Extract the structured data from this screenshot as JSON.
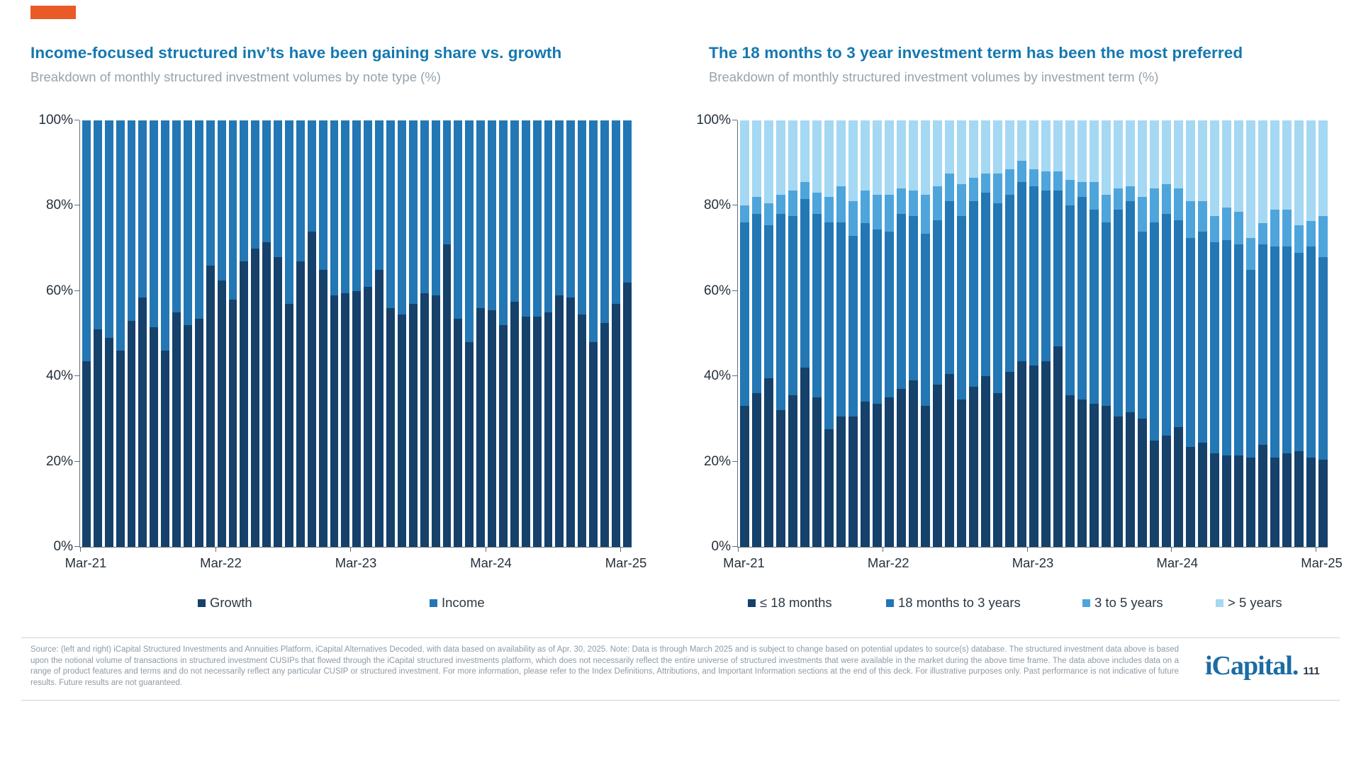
{
  "colors": {
    "accent_orange": "#E95A28",
    "title_blue": "#1478B0",
    "subtitle_gray": "#95A3AE",
    "axis_gray": "#5F6E79",
    "tick_label": "#25303B",
    "footer_gray": "#8C9BA7",
    "logo_blue": "#1B6CA5",
    "growth_navy": "#15416B",
    "income_blue": "#2277B4",
    "three_to_five_blue": "#4EA5DB",
    "over_five_blue": "#A5D8F3"
  },
  "charts": [
    {
      "title": "Income-focused structured inv’ts have been gaining share vs. growth",
      "subtitle": "Breakdown of monthly structured investment volumes by note type (%)"
    },
    {
      "title": "The 18 months to 3 year investment term has been the most preferred",
      "subtitle": "Breakdown of monthly structured investment volumes by investment term (%)"
    }
  ],
  "chart_data": [
    {
      "type": "bar",
      "stacked": true,
      "title": "Income-focused structured inv’ts have been gaining share vs. growth",
      "subtitle": "Breakdown of monthly structured investment volumes by note type (%)",
      "ylim": [
        0,
        100
      ],
      "grid": false,
      "legend_position": "bottom",
      "categories": [
        "Mar-21",
        "Apr-21",
        "May-21",
        "Jun-21",
        "Jul-21",
        "Aug-21",
        "Sep-21",
        "Oct-21",
        "Nov-21",
        "Dec-21",
        "Jan-22",
        "Feb-22",
        "Mar-22",
        "Apr-22",
        "May-22",
        "Jun-22",
        "Jul-22",
        "Aug-22",
        "Sep-22",
        "Oct-22",
        "Nov-22",
        "Dec-22",
        "Jan-23",
        "Feb-23",
        "Mar-23",
        "Apr-23",
        "May-23",
        "Jun-23",
        "Jul-23",
        "Aug-23",
        "Sep-23",
        "Oct-23",
        "Nov-23",
        "Dec-23",
        "Jan-24",
        "Feb-24",
        "Mar-24",
        "Apr-24",
        "May-24",
        "Jun-24",
        "Jul-24",
        "Aug-24",
        "Sep-24",
        "Oct-24",
        "Nov-24",
        "Dec-24",
        "Jan-25",
        "Feb-25",
        "Mar-25"
      ],
      "x_ticks": [
        {
          "label": "Mar-21",
          "index": 0
        },
        {
          "label": "Mar-22",
          "index": 12
        },
        {
          "label": "Mar-23",
          "index": 24
        },
        {
          "label": "Mar-24",
          "index": 36
        },
        {
          "label": "Mar-25",
          "index": 48
        }
      ],
      "y_ticks": [
        {
          "label": "0%",
          "value": 0
        },
        {
          "label": "20%",
          "value": 20
        },
        {
          "label": "40%",
          "value": 40
        },
        {
          "label": "60%",
          "value": 60
        },
        {
          "label": "80%",
          "value": 80
        },
        {
          "label": "100%",
          "value": 100
        }
      ],
      "series": [
        {
          "name": "Growth",
          "color": "#15416B",
          "values": [
            43.5,
            51,
            49,
            46,
            53,
            58.5,
            51.5,
            46,
            55,
            52,
            53.5,
            66,
            62.5,
            58,
            67,
            70,
            71.5,
            68,
            57,
            67,
            74,
            65,
            59,
            59.5,
            60,
            61,
            65,
            56,
            54.5,
            57,
            59.5,
            59,
            71,
            53.5,
            48,
            56,
            55.5,
            52,
            57.5,
            54,
            54,
            55,
            59,
            58.5,
            54.5,
            48,
            52.5,
            57,
            62
          ]
        },
        {
          "name": "Income",
          "color": "#2277B4",
          "values": [
            56.5,
            49,
            51,
            54,
            47,
            41.5,
            48.5,
            54,
            45,
            48,
            46.5,
            34,
            37.5,
            42,
            33,
            30,
            28.5,
            32,
            43,
            33,
            26,
            35,
            41,
            40.5,
            40,
            39,
            35,
            44,
            45.5,
            43,
            40.5,
            41,
            29,
            46.5,
            52,
            44,
            44.5,
            48,
            42.5,
            46,
            46,
            45,
            41,
            41.5,
            45.5,
            52,
            47.5,
            43,
            38
          ]
        }
      ]
    },
    {
      "type": "bar",
      "stacked": true,
      "title": "The 18 months to 3 year investment term has been the most preferred",
      "subtitle": "Breakdown of monthly structured investment volumes by investment term (%)",
      "ylim": [
        0,
        100
      ],
      "grid": false,
      "legend_position": "bottom",
      "categories": [
        "Mar-21",
        "Apr-21",
        "May-21",
        "Jun-21",
        "Jul-21",
        "Aug-21",
        "Sep-21",
        "Oct-21",
        "Nov-21",
        "Dec-21",
        "Jan-22",
        "Feb-22",
        "Mar-22",
        "Apr-22",
        "May-22",
        "Jun-22",
        "Jul-22",
        "Aug-22",
        "Sep-22",
        "Oct-22",
        "Nov-22",
        "Dec-22",
        "Jan-23",
        "Feb-23",
        "Mar-23",
        "Apr-23",
        "May-23",
        "Jun-23",
        "Jul-23",
        "Aug-23",
        "Sep-23",
        "Oct-23",
        "Nov-23",
        "Dec-23",
        "Jan-24",
        "Feb-24",
        "Mar-24",
        "Apr-24",
        "May-24",
        "Jun-24",
        "Jul-24",
        "Aug-24",
        "Sep-24",
        "Oct-24",
        "Nov-24",
        "Dec-24",
        "Jan-25",
        "Feb-25",
        "Mar-25"
      ],
      "x_ticks": [
        {
          "label": "Mar-21",
          "index": 0
        },
        {
          "label": "Mar-22",
          "index": 12
        },
        {
          "label": "Mar-23",
          "index": 24
        },
        {
          "label": "Mar-24",
          "index": 36
        },
        {
          "label": "Mar-25",
          "index": 48
        }
      ],
      "y_ticks": [
        {
          "label": "0%",
          "value": 0
        },
        {
          "label": "20%",
          "value": 20
        },
        {
          "label": "40%",
          "value": 40
        },
        {
          "label": "60%",
          "value": 60
        },
        {
          "label": "80%",
          "value": 80
        },
        {
          "label": "100%",
          "value": 100
        }
      ],
      "series": [
        {
          "name": "≤ 18 months",
          "color": "#15416B",
          "values": [
            33,
            36,
            39.5,
            32,
            35.5,
            42,
            35,
            27.5,
            30.5,
            30.5,
            34,
            33.5,
            35,
            37,
            39,
            33,
            38,
            40.5,
            34.5,
            37.5,
            40,
            36,
            41,
            43.5,
            42.5,
            43.5,
            47,
            35.5,
            34.5,
            33.5,
            33,
            30.5,
            31.5,
            30,
            25,
            26,
            28,
            23.5,
            24.5,
            22,
            21.5,
            21.5,
            21,
            24,
            21,
            22,
            22.5,
            21,
            20.5
          ]
        },
        {
          "name": "18 months to 3 years",
          "color": "#2277B4",
          "values": [
            43,
            42,
            36,
            46,
            42,
            39.5,
            43,
            48.5,
            45.5,
            42.5,
            42,
            41,
            39,
            41,
            38.5,
            40.5,
            38.5,
            40.5,
            43,
            43.5,
            43,
            44.5,
            41.5,
            42,
            42,
            40,
            36.5,
            44.5,
            47.5,
            45.5,
            43,
            48.5,
            49.5,
            44,
            51,
            52,
            48.5,
            49,
            49.5,
            49.5,
            50.5,
            49.5,
            44,
            47,
            49.5,
            48.5,
            46.5,
            49.5,
            47.5
          ]
        },
        {
          "name": "3 to 5 years",
          "color": "#4EA5DB",
          "values": [
            4,
            4,
            5,
            4.5,
            6,
            4,
            5,
            6,
            8.5,
            8,
            7.5,
            8,
            8.5,
            6,
            6,
            9,
            8,
            6.5,
            7.5,
            5.5,
            4.5,
            7,
            6,
            5,
            4,
            4.5,
            4.5,
            6,
            3.5,
            6.5,
            6.5,
            5,
            3.5,
            8,
            8,
            7,
            7.5,
            8.5,
            7,
            6,
            7.5,
            7.5,
            7.5,
            5,
            8.5,
            8.5,
            6.5,
            6,
            9.5
          ]
        },
        {
          "name": "> 5 years",
          "color": "#A5D8F3",
          "values": [
            20,
            18,
            19.5,
            17.5,
            16.5,
            14.5,
            17,
            18,
            15.5,
            19,
            16.5,
            17.5,
            17.5,
            16,
            16.5,
            17.5,
            15.5,
            12.5,
            15,
            13.5,
            12.5,
            12.5,
            11.5,
            9.5,
            11.5,
            12,
            12,
            14,
            14.5,
            14.5,
            17.5,
            16,
            15.5,
            18,
            16,
            15,
            16,
            19,
            19,
            22.5,
            20.5,
            21.5,
            27.5,
            24,
            21,
            21,
            24.5,
            23.5,
            22.5
          ]
        }
      ]
    }
  ],
  "footer": {
    "source_note": "Source: (left and right) iCapital Structured Investments and Annuities Platform, iCapital Alternatives Decoded, with data based on availability as of Apr. 30, 2025. Note: Data is through March 2025 and is subject to change based on potential updates to source(s) database. The structured investment data above is based upon the notional volume of transactions in structured investment CUSIPs that flowed through the iCapital structured investments platform, which does not necessarily reflect the entire universe of structured investments that were available in the market during the above time frame. The data above includes data on a range of product features and terms and do not necessarily reflect any particular CUSIP or structured investment. For more information, please refer to the Index Definitions, Attributions, and Important Information sections at the end of this deck. For illustrative purposes only. Past performance is not indicative of future results. Future results are not guaranteed.",
    "logo_text": "iCapital.",
    "page_number": "111"
  }
}
